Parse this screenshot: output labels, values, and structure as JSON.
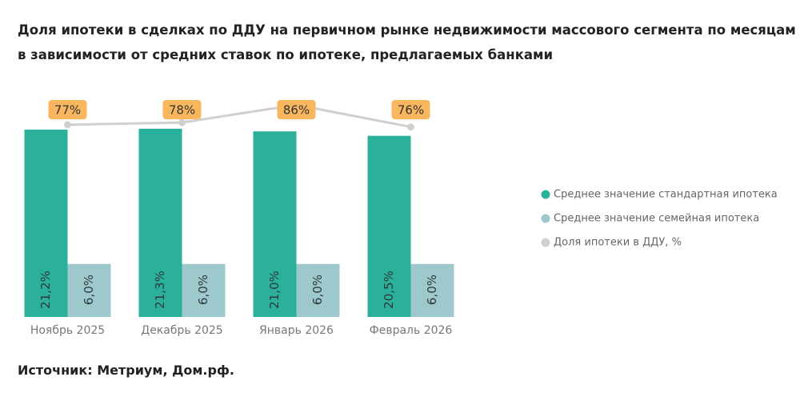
{
  "chart_data": {
    "type": "bar",
    "title": "Доля ипотеки в сделках по ДДУ на первичном рынке недвижимости массового сегмента по месяцам в зависимости от средних ставок по ипотеке, предлагаемых банками",
    "source": "Источник: Метриум, Дом.рф.",
    "categories": [
      "Ноябрь 2025",
      "Декабрь 2025",
      "Январь 2026",
      "Февраль 2026"
    ],
    "series": [
      {
        "name": "Среднее значение стандартная ипотека",
        "type": "bar",
        "color": "#2bb19b",
        "values": [
          21.2,
          21.3,
          21.0,
          20.5
        ],
        "value_labels": [
          "21,2%",
          "21,3%",
          "21,0%",
          "20,5%"
        ]
      },
      {
        "name": "Среднее значение семейная ипотека",
        "type": "bar",
        "color": "#9dc8cc",
        "values": [
          6.0,
          6.0,
          6.0,
          6.0
        ],
        "value_labels": [
          "6,0%",
          "6,0%",
          "6,0%",
          "6,0%"
        ]
      },
      {
        "name": "Доля ипотеки в ДДУ, %",
        "type": "line",
        "axis": "y2",
        "color": "#cfcfcf",
        "label_color": "#f8b75e",
        "values": [
          77,
          78,
          86,
          76
        ],
        "value_labels": [
          "77%",
          "78%",
          "86%",
          "76%"
        ]
      }
    ],
    "ylim": [
      0,
      25
    ],
    "y2lim": [
      -10,
      90
    ],
    "grid": false,
    "legend": "right"
  }
}
